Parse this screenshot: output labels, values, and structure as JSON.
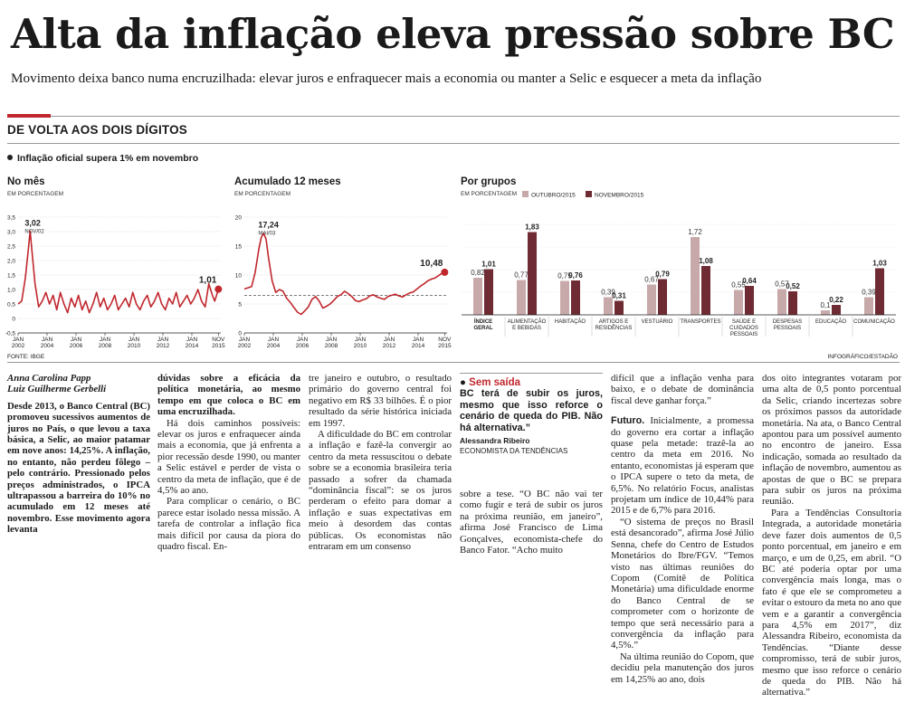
{
  "headline": "Alta da inflação eleva pressão sobre BC",
  "subhead": "Movimento deixa banco numa encruzilhada: elevar juros e enfraquecer mais a economia ou manter a Selic e esquecer a meta da inflação",
  "section_title": "DE VOLTA AOS DOIS DÍGITOS",
  "lead": "Inflação oficial supera 1% em novembro",
  "source": "FONTE: IBGE",
  "credit": "INFOGRÁFICO/ESTADÃO",
  "chart_data": [
    {
      "type": "line",
      "title": "No mês",
      "ylabel": "EM PORCENTAGEM",
      "ylim": [
        -0.5,
        3.5
      ],
      "yticks": [
        "3,5",
        "3,0",
        "2,5",
        "2,0",
        "1,5",
        "1,0",
        "0,5",
        "0",
        "-0,5"
      ],
      "yticks_values": [
        3.5,
        3.0,
        2.5,
        2.0,
        1.5,
        1.0,
        0.5,
        0,
        -0.5
      ],
      "xticks": [
        "JAN 2002",
        "JAN 2004",
        "JAN 2006",
        "JAN 2008",
        "JAN 2010",
        "JAN 2012",
        "JAN 2014",
        "NOV 2015"
      ],
      "annotations": [
        {
          "label": "3,02",
          "sub": "NOV/02",
          "x": 10,
          "y": 3.02
        },
        {
          "label": "1,01",
          "x": 166,
          "y": 1.01
        }
      ],
      "x": [
        0,
        3,
        6,
        8,
        10,
        12,
        14,
        17,
        20,
        23,
        26,
        29,
        32,
        35,
        38,
        41,
        44,
        47,
        50,
        53,
        56,
        59,
        62,
        65,
        68,
        71,
        74,
        77,
        80,
        83,
        86,
        89,
        92,
        95,
        98,
        101,
        104,
        107,
        110,
        113,
        116,
        119,
        122,
        125,
        128,
        131,
        134,
        137,
        140,
        143,
        146,
        149,
        152,
        155,
        158,
        161,
        163,
        166
      ],
      "values": [
        0.5,
        0.6,
        1.4,
        2.2,
        3.02,
        2.1,
        1.2,
        0.4,
        0.6,
        0.9,
        0.5,
        0.8,
        0.3,
        0.9,
        0.5,
        0.2,
        0.7,
        0.4,
        0.8,
        0.3,
        0.6,
        0.2,
        0.5,
        0.9,
        0.4,
        0.7,
        0.3,
        0.5,
        0.8,
        0.3,
        0.5,
        0.7,
        0.4,
        0.9,
        0.5,
        0.3,
        0.6,
        0.8,
        0.4,
        0.6,
        0.9,
        0.5,
        0.3,
        0.7,
        0.5,
        0.9,
        0.4,
        0.6,
        0.8,
        0.5,
        0.7,
        1.0,
        0.6,
        0.4,
        1.2,
        0.8,
        0.6,
        1.01
      ]
    },
    {
      "type": "line",
      "title": "Acumulado 12 meses",
      "ylabel": "EM PORCENTAGEM",
      "ylim": [
        0,
        20
      ],
      "yticks": [
        "20",
        "15",
        "10",
        "5",
        "0"
      ],
      "yticks_values": [
        20,
        15,
        10,
        5,
        0
      ],
      "reference_line": 6.5,
      "xticks": [
        "JAN 2002",
        "JAN 2004",
        "JAN 2006",
        "JAN 2008",
        "JAN 2010",
        "JAN 2012",
        "JAN 2014",
        "NOV 2015"
      ],
      "annotations": [
        {
          "label": "17,24",
          "sub": "MAI/03",
          "x": 16,
          "y": 17.24
        },
        {
          "label": "10,48",
          "x": 166,
          "y": 10.48
        }
      ],
      "x": [
        0,
        3,
        6,
        9,
        12,
        14,
        16,
        18,
        20,
        23,
        26,
        29,
        32,
        35,
        38,
        41,
        44,
        47,
        50,
        53,
        56,
        59,
        62,
        65,
        68,
        71,
        74,
        77,
        80,
        83,
        86,
        89,
        92,
        95,
        98,
        101,
        104,
        107,
        110,
        113,
        116,
        119,
        122,
        125,
        128,
        131,
        134,
        137,
        140,
        143,
        146,
        149,
        152,
        155,
        158,
        161,
        163,
        166
      ],
      "values": [
        7.6,
        7.8,
        8.0,
        10.5,
        14.5,
        16.5,
        17.24,
        16.2,
        13.0,
        9.0,
        7.0,
        7.5,
        7.2,
        6.0,
        5.3,
        4.4,
        3.6,
        3.2,
        3.8,
        4.5,
        5.8,
        6.3,
        5.5,
        4.3,
        4.6,
        5.0,
        5.6,
        6.3,
        6.6,
        7.2,
        6.8,
        6.3,
        5.6,
        5.4,
        5.7,
        5.9,
        6.4,
        6.6,
        6.2,
        6.0,
        5.8,
        6.3,
        6.5,
        6.7,
        6.4,
        6.2,
        6.6,
        6.9,
        7.1,
        7.6,
        8.1,
        8.5,
        9.0,
        9.3,
        9.5,
        9.9,
        10.2,
        10.48
      ]
    },
    {
      "type": "bar",
      "title": "Por grupos",
      "ylabel": "EM PORCENTAGEM",
      "legend_position": "top",
      "series": [
        {
          "name": "OUTUBRO/2015",
          "color": "#c7a9aa",
          "values": [
            0.82,
            0.77,
            0.75,
            0.39,
            0.67,
            1.72,
            0.55,
            0.57,
            0.1,
            0.39
          ]
        },
        {
          "name": "NOVEMBRO/2015",
          "color": "#6f2b33",
          "values": [
            1.01,
            1.83,
            0.76,
            0.31,
            0.79,
            1.08,
            0.64,
            0.52,
            0.22,
            1.03
          ]
        }
      ],
      "labels_oct": [
        "0,82",
        "0,77",
        "0,75",
        "0,39",
        "0,67",
        "1,72",
        "0,55",
        "0,57",
        "0,1",
        "0,39"
      ],
      "labels_nov": [
        "1,01",
        "1,83",
        "0,76",
        "0,31",
        "0,79",
        "1,08",
        "0,64",
        "0,52",
        "0,22",
        "1,03"
      ],
      "categories": [
        [
          "ÍNDICE",
          "GERAL"
        ],
        [
          "ALIMENTAÇÃO",
          "E BEBIDAS"
        ],
        [
          "HABITAÇÃO"
        ],
        [
          "ARTIGOS E",
          "RESIDÊNCIAS"
        ],
        [
          "VESTUÁRIO"
        ],
        [
          "TRANSPORTES"
        ],
        [
          "SAÚDE E",
          "CUIDADOS",
          "PESSOAIS"
        ],
        [
          "DESPESAS",
          "PESSOAIS"
        ],
        [
          "EDUCAÇÃO"
        ],
        [
          "COMUNICAÇÃO"
        ]
      ]
    }
  ],
  "article": {
    "byline1": "Anna Carolina Papp",
    "byline2": "Luiz Guilherme Gerbelli",
    "col1_p1": "Desde 2013, o Banco Central (BC) promoveu sucessivos aumentos de juros no País, o que levou a taxa básica, a Selic, ao maior patamar em nove anos: 14,25%. A inflação, no entanto, não perdeu fôlego – pelo contrário. Pressionado pelos preços administrados, o IPCA ultrapassou a barreira do 10% no acumulado em 12 meses até novembro. Esse movimento agora levanta",
    "col2_p1": "dúvidas sobre a eficácia da política monetária, ao mesmo tempo em que coloca o BC em uma encruzilhada.",
    "col2_p2": "Há dois caminhos possíveis: elevar os juros e enfraquecer ainda mais a economia, que já enfrenta a pior recessão desde 1990, ou manter a Selic estável e perder de vista o centro da meta de inflação, que é de 4,5% ao ano.",
    "col2_p3": "Para complicar o cenário, o BC parece estar isolado nessa missão. A tarefa de controlar a inflação fica mais difícil por causa da piora do quadro fiscal. En-",
    "col3_p1": "tre janeiro e outubro, o resultado primário do governo central foi negativo em R$ 33 bilhões. É o pior resultado da série histórica iniciada em 1997.",
    "col3_p2": "A dificuldade do BC em controlar a inflação e fazê-la convergir ao centro da meta ressuscitou o debate sobre se a economia brasileira teria passado a sofrer da chamada “dominância fiscal”: se os juros perderam o efeito para domar a inflação e suas expectativas em meio à desordem das contas públicas. Os economistas não entraram em um consenso",
    "box_head": "Sem saída",
    "box_quote": "BC terá de subir os juros, mesmo que isso reforce o cenário de queda do PIB. Não há alternativa.”",
    "box_author": "Alessandra Ribeiro",
    "box_role": "ECONOMISTA DA TENDÊNCIAS",
    "col4_p1": "sobre a tese. “O BC não vai ter como fugir e terá de subir os juros na próxima reunião, em janeiro”, afirma José Francisco de Lima Gonçalves, economista-chefe do Banco Fator. “Acho muito",
    "col5_p1": "difícil que a inflação venha para baixo, e o debate de dominância fiscal deve ganhar força.”",
    "col5_kicker": "Futuro.",
    "col5_p2": "Inicialmente, a promessa do governo era cortar a inflação quase pela metade: trazê-la ao centro da meta em 2016. No entanto, economistas já esperam que o IPCA supere o teto da meta, de 6,5%. No relatório Focus, analistas projetam um índice de 10,44% para 2015 e de 6,7% para 2016.",
    "col5_p3": "“O sistema de preços no Brasil está desancorado”, afirma José Júlio Senna, chefe do Centro de Estudos Monetários do Ibre/FGV. “Temos visto nas últimas reuniões do Copom (Comitê de Política Monetária) uma dificuldade enorme do Banco Central de se comprometer com o horizonte de tempo que será necessário para a convergência da inflação para 4,5%.”",
    "col5_p4": "Na última reunião do Copom, que decidiu pela manutenção dos juros em 14,25% ao ano, dois",
    "col6_p1": "dos oito integrantes votaram por uma alta de 0,5 ponto porcentual da Selic, criando incertezas sobre os próximos passos da autoridade monetária. Na ata, o Banco Central apontou para um possível aumento no encontro de janeiro. Essa indicação, somada ao resultado da inflação de novembro, aumentou as apostas de que o BC se prepara para subir os juros na próxima reunião.",
    "col6_p2": "Para a Tendências Consultoria Integrada, a autoridade monetária deve fazer dois aumentos de 0,5 ponto porcentual, em janeiro e em março, e um de 0,25, em abril. “O BC até poderia optar por uma convergência mais longa, mas o fato é que ele se comprometeu a evitar o estouro da meta no ano que vem e a garantir a convergência para 4,5% em 2017”, diz Alessandra Ribeiro, economista da Tendências. “Diante desse compromisso, terá de subir juros, mesmo que isso reforce o cenário de queda do PIB. Não há alternativa.”"
  }
}
